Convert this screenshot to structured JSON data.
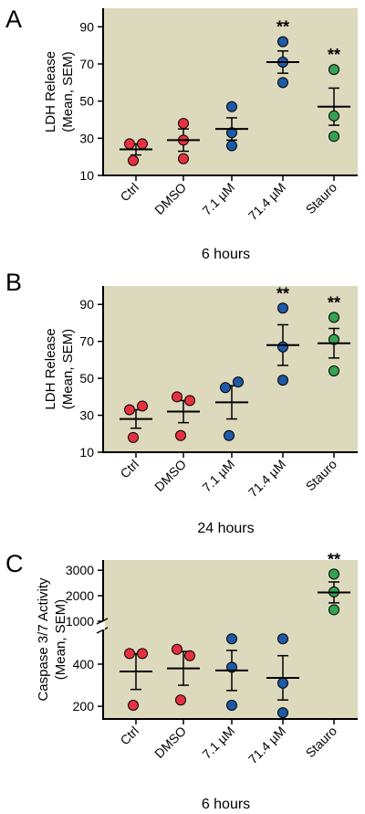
{
  "colors": {
    "background": "#dcd9bd",
    "red": "#e63240",
    "blue": "#1f5aa6",
    "green": "#35a353"
  },
  "chart_data": [
    {
      "type": "scatter",
      "panel": "A",
      "xlabel": "6 hours",
      "ylabel": [
        "LDH Release",
        "(Mean, SEM)"
      ],
      "categories": [
        "Ctrl",
        "DMSO",
        "7.1 µM",
        "71.4 µM",
        "Stauro"
      ],
      "ylim": [
        10,
        100
      ],
      "yticks": [
        10,
        30,
        50,
        70,
        90
      ],
      "point_colors": [
        "red",
        "red",
        "blue",
        "blue",
        "green"
      ],
      "points": [
        [
          27,
          27,
          18
        ],
        [
          38,
          29,
          19
        ],
        [
          47,
          33,
          26
        ],
        [
          82,
          71,
          60
        ],
        [
          67,
          42,
          31
        ]
      ],
      "mean": [
        24,
        29,
        35,
        71,
        47
      ],
      "sem": [
        3,
        6,
        6,
        6,
        10
      ],
      "significance": [
        "",
        "",
        "",
        "**",
        "**"
      ]
    },
    {
      "type": "scatter",
      "panel": "B",
      "xlabel": "24 hours",
      "ylabel": [
        "LDH Release",
        "(Mean, SEM)"
      ],
      "categories": [
        "Ctrl",
        "DMSO",
        "7.1 µM",
        "71.4 µM",
        "Stauro"
      ],
      "ylim": [
        10,
        100
      ],
      "yticks": [
        10,
        30,
        50,
        70,
        90
      ],
      "point_colors": [
        "red",
        "red",
        "blue",
        "blue",
        "green"
      ],
      "points": [
        [
          33,
          35,
          18
        ],
        [
          40,
          38,
          19
        ],
        [
          45,
          48,
          19
        ],
        [
          88,
          67,
          49
        ],
        [
          83,
          71,
          54
        ]
      ],
      "mean": [
        28,
        32,
        37,
        68,
        69
      ],
      "sem": [
        5,
        6,
        9,
        11,
        8
      ],
      "significance": [
        "",
        "",
        "",
        "**",
        "**"
      ]
    },
    {
      "type": "scatter",
      "panel": "C",
      "xlabel": "6 hours",
      "ylabel": [
        "Caspase 3/7 Activity",
        "(Mean, SEM)"
      ],
      "categories": [
        "Ctrl",
        "DMSO",
        "7.1 µM",
        "71.4 µM",
        "Stauro"
      ],
      "axis_break": true,
      "upper_ylim": [
        1000,
        3400
      ],
      "upper_yticks": [
        1000,
        2000,
        3000
      ],
      "lower_ylim": [
        140,
        560
      ],
      "lower_yticks": [
        200,
        400
      ],
      "point_colors": [
        "red",
        "red",
        "blue",
        "blue",
        "green"
      ],
      "points": [
        [
          450,
          450,
          205
        ],
        [
          470,
          440,
          230
        ],
        [
          520,
          385,
          205
        ],
        [
          520,
          310,
          170
        ],
        [
          2850,
          2150,
          1450
        ]
      ],
      "mean": [
        365,
        380,
        370,
        335,
        2130
      ],
      "sem": [
        85,
        80,
        95,
        105,
        410
      ],
      "significance": [
        "",
        "",
        "",
        "",
        "**"
      ]
    }
  ]
}
